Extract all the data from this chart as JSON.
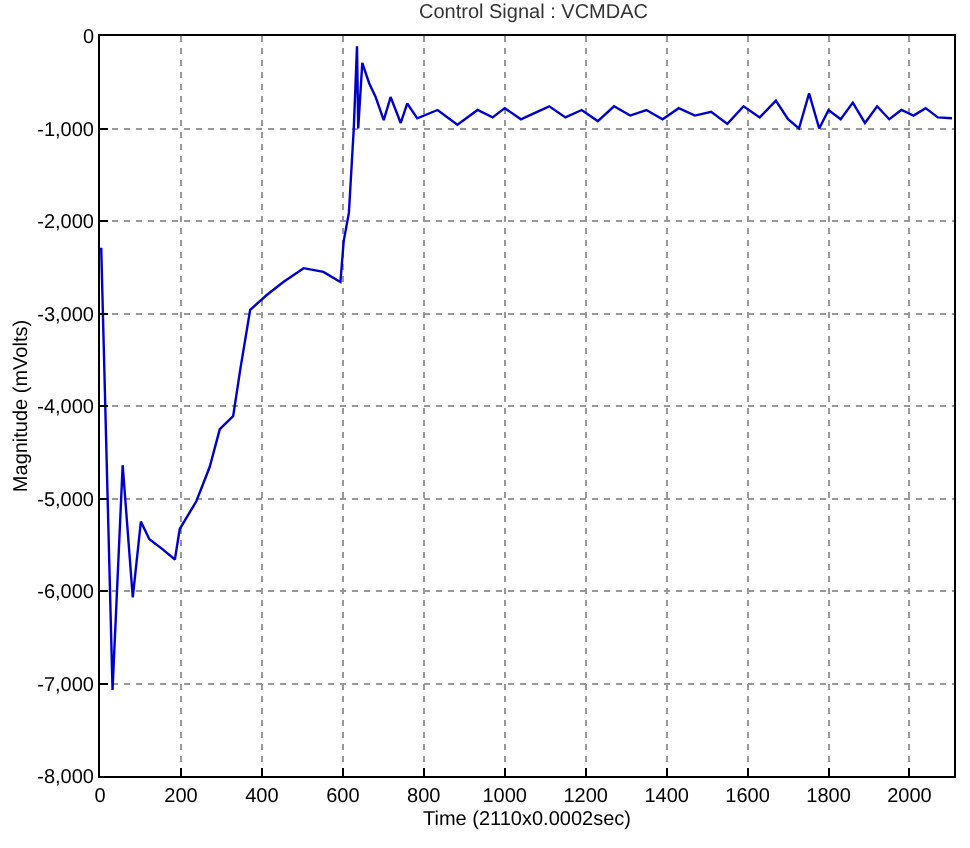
{
  "chart_data": {
    "type": "line",
    "title": "Control Signal : VCMDAC",
    "xlabel": "Time (2110x0.0002sec)",
    "ylabel": "Magnitude (mVolts)",
    "xlim": [
      0,
      2110
    ],
    "xticks": [
      0,
      200,
      400,
      600,
      800,
      1000,
      1200,
      1400,
      1600,
      1800,
      2000
    ],
    "ylim": [
      -8000,
      0
    ],
    "yticks": [
      {
        "value": -8000,
        "label": "-8,000"
      },
      {
        "value": -7000,
        "label": "-7,000"
      },
      {
        "value": -6000,
        "label": "-6,000"
      },
      {
        "value": -5000,
        "label": "-5,000"
      },
      {
        "value": -4000,
        "label": "-4,000"
      },
      {
        "value": -3000,
        "label": "-3,000"
      },
      {
        "value": -2000,
        "label": "-2,000"
      },
      {
        "value": -1000,
        "label": "-1,000"
      },
      {
        "value": 0,
        "label": "0"
      }
    ],
    "grid": true,
    "line_style": "solid",
    "marker": "none",
    "series": [
      {
        "color": "#0000cc",
        "x": [
          3,
          31,
          56,
          81,
          101,
          122,
          155,
          185,
          197,
          238,
          271,
          296,
          329,
          346,
          371,
          412,
          453,
          503,
          552,
          594,
          602,
          615,
          627,
          635,
          638,
          648,
          665,
          681,
          701,
          718,
          743,
          759,
          784,
          834,
          883,
          933,
          970,
          1000,
          1040,
          1080,
          1110,
          1150,
          1190,
          1230,
          1270,
          1310,
          1350,
          1390,
          1430,
          1470,
          1510,
          1550,
          1590,
          1630,
          1670,
          1700,
          1727,
          1752,
          1777,
          1800,
          1830,
          1860,
          1890,
          1920,
          1950,
          1980,
          2010,
          2040,
          2070,
          2105
        ],
        "values": [
          -2290,
          -7070,
          -4640,
          -6070,
          -5250,
          -5440,
          -5550,
          -5660,
          -5330,
          -5030,
          -4660,
          -4250,
          -4110,
          -3620,
          -2960,
          -2800,
          -2660,
          -2510,
          -2550,
          -2660,
          -2220,
          -1910,
          -1000,
          -110,
          -1000,
          -290,
          -510,
          -660,
          -910,
          -660,
          -940,
          -730,
          -890,
          -800,
          -960,
          -800,
          -880,
          -780,
          -900,
          -820,
          -760,
          -880,
          -800,
          -920,
          -760,
          -860,
          -800,
          -900,
          -780,
          -860,
          -820,
          -950,
          -760,
          -880,
          -700,
          -900,
          -1000,
          -620,
          -1000,
          -800,
          -900,
          -720,
          -940,
          -760,
          -900,
          -800,
          -860,
          -780,
          -880,
          -890
        ]
      }
    ]
  }
}
